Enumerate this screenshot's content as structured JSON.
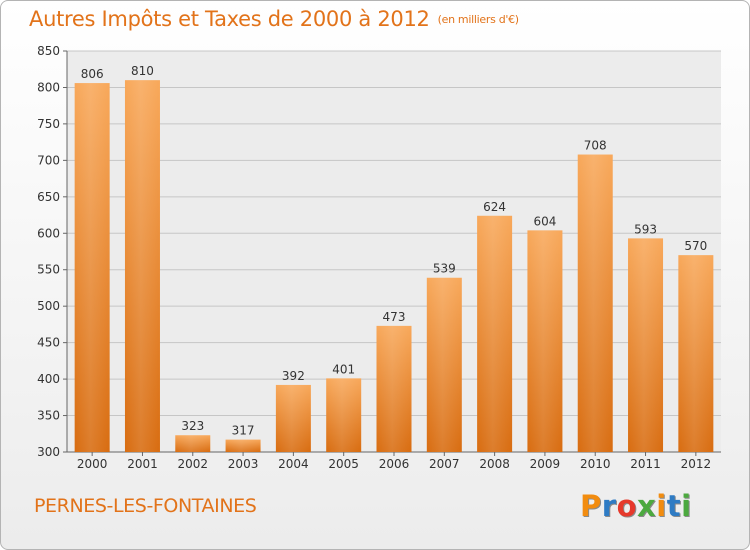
{
  "header": {
    "title": "Autres Impôts et Taxes de 2000 à 2012",
    "subtitle": "(en milliers d'€)"
  },
  "footer": {
    "commune": "PERNES-LES-FONTAINES",
    "logo_text": "Proxiti",
    "logo_colors": [
      "#f28c0f",
      "#2e7bc4",
      "#e6392b",
      "#4ca93f",
      "#f28c0f",
      "#2e7bc4",
      "#4ca93f"
    ]
  },
  "colors": {
    "bar_top": "#f8a85a",
    "bar_bottom": "#d86c10",
    "title": "#e2731a",
    "grid": "#c6c6c6",
    "plot_bg": "#ececec"
  },
  "chart_data": {
    "type": "bar",
    "categories": [
      "2000",
      "2001",
      "2002",
      "2003",
      "2004",
      "2005",
      "2006",
      "2007",
      "2008",
      "2009",
      "2010",
      "2011",
      "2012"
    ],
    "values": [
      806,
      810,
      323,
      317,
      392,
      401,
      473,
      539,
      624,
      604,
      708,
      593,
      570
    ],
    "ylim": [
      300,
      850
    ],
    "yticks": [
      300,
      350,
      400,
      450,
      500,
      550,
      600,
      650,
      700,
      750,
      800,
      850
    ],
    "grid": true
  }
}
